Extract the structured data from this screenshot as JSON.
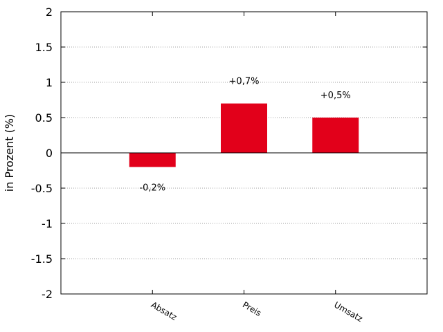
{
  "chart_data": {
    "type": "bar",
    "categories": [
      "Absatz",
      "Preis",
      "Umsatz"
    ],
    "values": [
      -0.2,
      0.7,
      0.5
    ],
    "data_labels": [
      "-0,2%",
      "+0,7%",
      "+0,5%"
    ],
    "title": "",
    "xlabel": "",
    "ylabel": "in Prozent (%)",
    "ylim": [
      -2,
      2
    ],
    "yticks": [
      2,
      1.5,
      1,
      0.5,
      0,
      -0.5,
      -1,
      -1.5,
      -2
    ],
    "ytick_labels": [
      "2",
      "1.5",
      "1",
      "0.5",
      "0",
      "-0.5",
      "-1",
      "-1.5",
      "-2"
    ],
    "grid": true,
    "bar_color": "#e2001a"
  }
}
